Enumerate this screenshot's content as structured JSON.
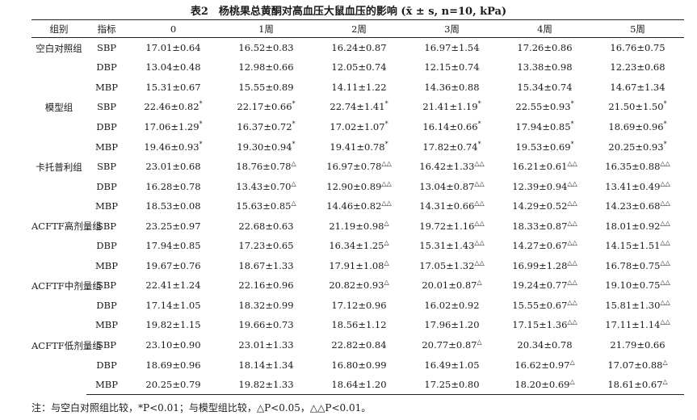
{
  "title": "表2　杨桃果总黄酮对高血压大鼠血压的影响 (x̄ ± s, n=10, kPa)",
  "columns": [
    "组别",
    "指标",
    "0",
    "1周",
    "2周",
    "3周",
    "4周",
    "5周"
  ],
  "groups": [
    {
      "label": "空白对照组",
      "rows": [
        {
          "metric": "SBP",
          "values": [
            "17.01±0.64",
            "16.52±0.83",
            "16.24±0.87",
            "16.97±1.54",
            "17.26±0.86",
            "16.76±0.75"
          ],
          "marks": [
            "",
            "",
            "",
            "",
            "",
            ""
          ]
        },
        {
          "metric": "DBP",
          "values": [
            "13.04±0.48",
            "12.98±0.66",
            "12.05±0.74",
            "12.15±0.74",
            "13.38±0.98",
            "12.23±0.68"
          ],
          "marks": [
            "",
            "",
            "",
            "",
            "",
            ""
          ]
        },
        {
          "metric": "MBP",
          "values": [
            "15.31±0.67",
            "15.55±0.89",
            "14.11±1.22",
            "14.36±0.88",
            "15.34±0.74",
            "14.67±1.34"
          ],
          "marks": [
            "",
            "",
            "",
            "",
            "",
            ""
          ]
        }
      ]
    },
    {
      "label": "模型组",
      "rows": [
        {
          "metric": "SBP",
          "values": [
            "22.46±0.82",
            "22.17±0.66",
            "22.74±1.41",
            "21.41±1.19",
            "22.55±0.93",
            "21.50±1.50"
          ],
          "marks": [
            "*",
            "*",
            "*",
            "*",
            "*",
            "*"
          ]
        },
        {
          "metric": "DBP",
          "values": [
            "17.06±1.29",
            "16.37±0.72",
            "17.02±1.07",
            "16.14±0.66",
            "17.94±0.85",
            "18.69±0.96"
          ],
          "marks": [
            "*",
            "*",
            "*",
            "*",
            "*",
            "*"
          ]
        },
        {
          "metric": "MBP",
          "values": [
            "19.46±0.93",
            "19.30±0.94",
            "19.41±0.78",
            "17.82±0.74",
            "19.53±0.69",
            "20.25±0.93"
          ],
          "marks": [
            "*",
            "*",
            "*",
            "*",
            "*",
            "*"
          ]
        }
      ]
    },
    {
      "label": "卡托普利组",
      "rows": [
        {
          "metric": "SBP",
          "values": [
            "23.01±0.68",
            "18.76±0.78",
            "16.97±0.78",
            "16.42±1.33",
            "16.21±0.61",
            "16.35±0.88"
          ],
          "marks": [
            "",
            "△",
            "△△",
            "△△",
            "△△",
            "△△"
          ]
        },
        {
          "metric": "DBP",
          "values": [
            "16.28±0.78",
            "13.43±0.70",
            "12.90±0.89",
            "13.04±0.87",
            "12.39±0.94",
            "13.41±0.49"
          ],
          "marks": [
            "",
            "△",
            "△△",
            "△△",
            "△△",
            "△△"
          ]
        },
        {
          "metric": "MBP",
          "values": [
            "18.53±0.08",
            "15.63±0.85",
            "14.46±0.82",
            "14.31±0.66",
            "14.29±0.52",
            "14.23±0.68"
          ],
          "marks": [
            "",
            "△",
            "△△",
            "△△",
            "△△",
            "△△"
          ]
        }
      ]
    },
    {
      "label": "ACFTF高剂量组",
      "rows": [
        {
          "metric": "SBP",
          "values": [
            "23.25±0.97",
            "22.68±0.63",
            "21.19±0.98",
            "19.72±1.16",
            "18.33±0.87",
            "18.01±0.92"
          ],
          "marks": [
            "",
            "",
            "△",
            "△△",
            "△△",
            "△△"
          ]
        },
        {
          "metric": "DBP",
          "values": [
            "17.94±0.85",
            "17.23±0.65",
            "16.34±1.25",
            "15.31±1.43",
            "14.27±0.67",
            "14.15±1.51"
          ],
          "marks": [
            "",
            "",
            "△",
            "△△",
            "△△",
            "△△"
          ]
        },
        {
          "metric": "MBP",
          "values": [
            "19.67±0.76",
            "18.67±1.33",
            "17.91±1.08",
            "17.05±1.32",
            "16.99±1.28",
            "16.78±0.75"
          ],
          "marks": [
            "",
            "",
            "△",
            "△△",
            "△△",
            "△△"
          ]
        }
      ]
    },
    {
      "label": "ACFTF中剂量组",
      "rows": [
        {
          "metric": "SBP",
          "values": [
            "22.41±1.24",
            "22.16±0.96",
            "20.82±0.93",
            "20.01±0.87",
            "19.24±0.77",
            "19.10±0.75"
          ],
          "marks": [
            "",
            "",
            "△",
            "△",
            "△△",
            "△△"
          ]
        },
        {
          "metric": "DBP",
          "values": [
            "17.14±1.05",
            "18.32±0.99",
            "17.12±0.96",
            "16.02±0.92",
            "15.55±0.67",
            "15.81±1.30"
          ],
          "marks": [
            "",
            "",
            "",
            "",
            "△△",
            "△△"
          ]
        },
        {
          "metric": "MBP",
          "values": [
            "19.82±1.15",
            "19.66±0.73",
            "18.56±1.12",
            "17.96±1.20",
            "17.15±1.36",
            "17.11±1.14"
          ],
          "marks": [
            "",
            "",
            "",
            "",
            "△△",
            "△△"
          ]
        }
      ]
    },
    {
      "label": "ACFTF低剂量组",
      "rows": [
        {
          "metric": "SBP",
          "values": [
            "23.10±0.90",
            "23.01±1.33",
            "22.82±0.84",
            "20.77±0.87",
            "20.34±0.78",
            "21.79±0.66"
          ],
          "marks": [
            "",
            "",
            "",
            "△",
            "",
            ""
          ]
        },
        {
          "metric": "DBP",
          "values": [
            "18.69±0.96",
            "18.14±1.34",
            "16.80±0.99",
            "16.49±1.05",
            "16.62±0.97",
            "17.07±0.88"
          ],
          "marks": [
            "",
            "",
            "",
            "",
            "△",
            "△"
          ]
        },
        {
          "metric": "MBP",
          "values": [
            "20.25±0.79",
            "19.82±1.33",
            "18.64±1.20",
            "17.25±0.80",
            "18.20±0.69",
            "18.61±0.67"
          ],
          "marks": [
            "",
            "",
            "",
            "",
            "△",
            "△"
          ]
        }
      ]
    }
  ],
  "note": "注：与空白对照组比较，*P<0.01；与模型组比较，△P<0.05，△△P<0.01。"
}
